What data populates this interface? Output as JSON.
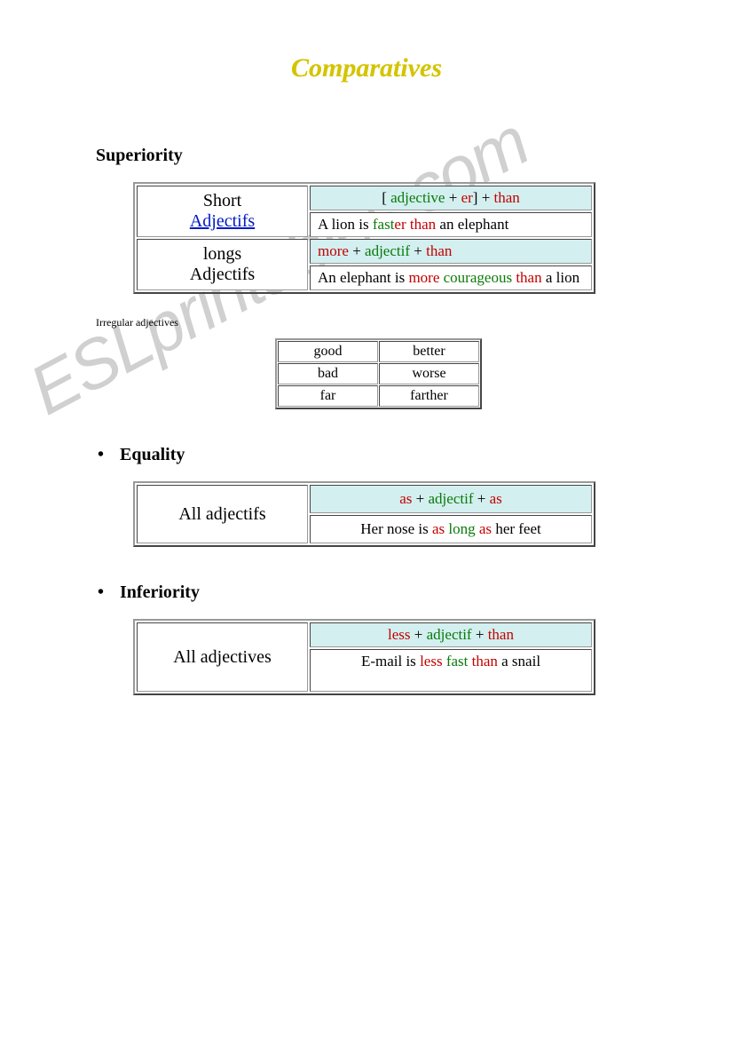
{
  "title": "Comparatives",
  "superiority": {
    "heading": "Superiority",
    "rows": [
      {
        "left_line1": "Short",
        "left_line2": "Adjectifs",
        "left_line2_link": true,
        "formula_parts": [
          {
            "text": "[ ",
            "color": "black"
          },
          {
            "text": "adjective",
            "color": "green"
          },
          {
            "text": " + ",
            "color": "black"
          },
          {
            "text": "er",
            "color": "red"
          },
          {
            "text": "] + ",
            "color": "black"
          },
          {
            "text": "than",
            "color": "red"
          }
        ],
        "example_parts": [
          {
            "text": "A lion is ",
            "color": "black"
          },
          {
            "text": "fast",
            "color": "green"
          },
          {
            "text": "er",
            "color": "red"
          },
          {
            "text": " ",
            "color": "black"
          },
          {
            "text": "than",
            "color": "red"
          },
          {
            "text": " an elephant",
            "color": "black"
          }
        ]
      },
      {
        "left_line1": "longs",
        "left_line2": "Adjectifs",
        "left_line2_link": false,
        "formula_parts": [
          {
            "text": "more",
            "color": "red"
          },
          {
            "text": " + ",
            "color": "black"
          },
          {
            "text": "adjectif",
            "color": "green"
          },
          {
            "text": " + ",
            "color": "black"
          },
          {
            "text": "than",
            "color": "red"
          }
        ],
        "example_parts": [
          {
            "text": "An elephant is ",
            "color": "black"
          },
          {
            "text": "more",
            "color": "red"
          },
          {
            "text": " ",
            "color": "black"
          },
          {
            "text": "courageous",
            "color": "green"
          },
          {
            "text": " ",
            "color": "black"
          },
          {
            "text": "than",
            "color": "red"
          },
          {
            "text": " a lion",
            "color": "black"
          }
        ]
      }
    ]
  },
  "irregular": {
    "label": "Irregular adjectives",
    "rows": [
      [
        "good",
        "better"
      ],
      [
        "bad",
        "worse"
      ],
      [
        "far",
        "farther"
      ]
    ]
  },
  "equality": {
    "heading": "Equality",
    "left": "All adjectifs",
    "formula_parts": [
      {
        "text": "as",
        "color": "red"
      },
      {
        "text": " + ",
        "color": "black"
      },
      {
        "text": "adjectif",
        "color": "green"
      },
      {
        "text": " + ",
        "color": "black"
      },
      {
        "text": "as",
        "color": "red"
      }
    ],
    "example_parts": [
      {
        "text": "Her nose is ",
        "color": "black"
      },
      {
        "text": "as",
        "color": "red"
      },
      {
        "text": " ",
        "color": "black"
      },
      {
        "text": "long",
        "color": "green"
      },
      {
        "text": " ",
        "color": "black"
      },
      {
        "text": "as",
        "color": "red"
      },
      {
        "text": " her feet",
        "color": "black"
      }
    ]
  },
  "inferiority": {
    "heading": "Inferiority",
    "left": "All adjectives",
    "formula_parts": [
      {
        "text": "less",
        "color": "red"
      },
      {
        "text": " + ",
        "color": "black"
      },
      {
        "text": "adjectif",
        "color": "green"
      },
      {
        "text": " + ",
        "color": "black"
      },
      {
        "text": "than",
        "color": "red"
      }
    ],
    "example_parts": [
      {
        "text": "E-mail is ",
        "color": "black"
      },
      {
        "text": "less",
        "color": "red"
      },
      {
        "text": " ",
        "color": "black"
      },
      {
        "text": "fast",
        "color": "green"
      },
      {
        "text": " ",
        "color": "black"
      },
      {
        "text": "than",
        "color": "red"
      },
      {
        "text": " a snail",
        "color": "black"
      }
    ]
  },
  "watermark": "ESLprintables.com"
}
